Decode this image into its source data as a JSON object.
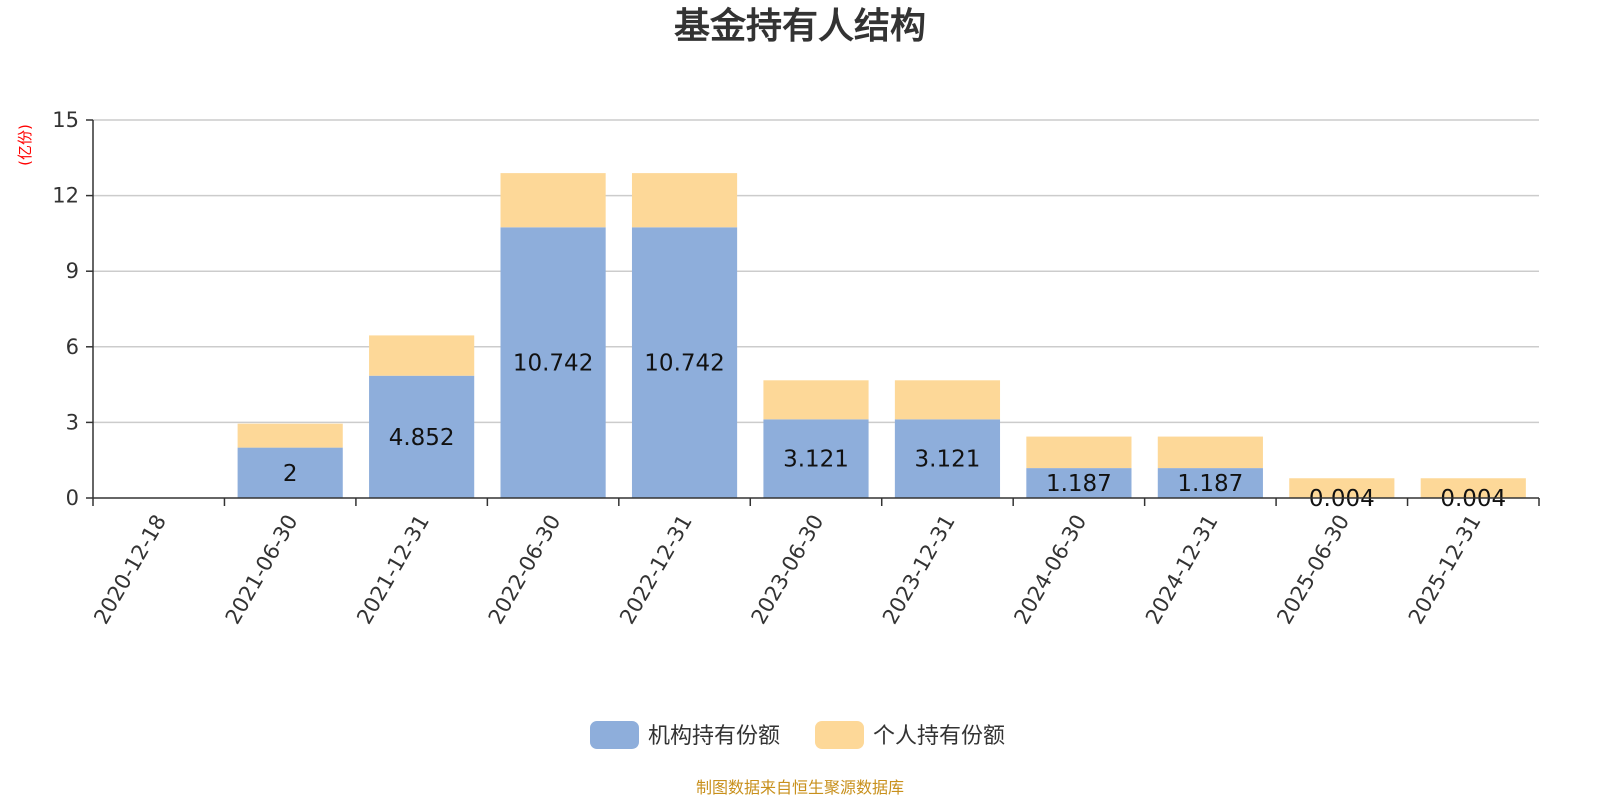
{
  "chart_data": {
    "type": "bar",
    "stacked": true,
    "title": "基金持有人结构",
    "ylabel": "(亿份)",
    "ylim": [
      0,
      15
    ],
    "yticks": [
      0,
      3,
      6,
      9,
      12,
      15
    ],
    "grid": true,
    "legend_position": "bottom-center",
    "categories": [
      "2020-12-18",
      "2021-06-30",
      "2021-12-31",
      "2022-06-30",
      "2022-12-31",
      "2023-06-30",
      "2023-12-31",
      "2024-06-30",
      "2024-12-31",
      "2025-06-30",
      "2025-12-31"
    ],
    "series": [
      {
        "name": "机构持有份额",
        "color": "#8eaedb",
        "values": [
          0,
          2,
          4.852,
          10.742,
          10.742,
          3.121,
          3.121,
          1.187,
          1.187,
          0.004,
          0.004
        ],
        "labels": [
          "",
          "2",
          "4.852",
          "10.742",
          "10.742",
          "3.121",
          "3.121",
          "1.187",
          "1.187",
          "0.004",
          "0.004"
        ]
      },
      {
        "name": "个人持有份额",
        "color": "#fdd898",
        "values": [
          0,
          0.95,
          1.6,
          2.15,
          2.15,
          1.55,
          1.55,
          1.25,
          1.25,
          0.78,
          0.78
        ]
      }
    ],
    "source": "制图数据来自恒生聚源数据库"
  }
}
